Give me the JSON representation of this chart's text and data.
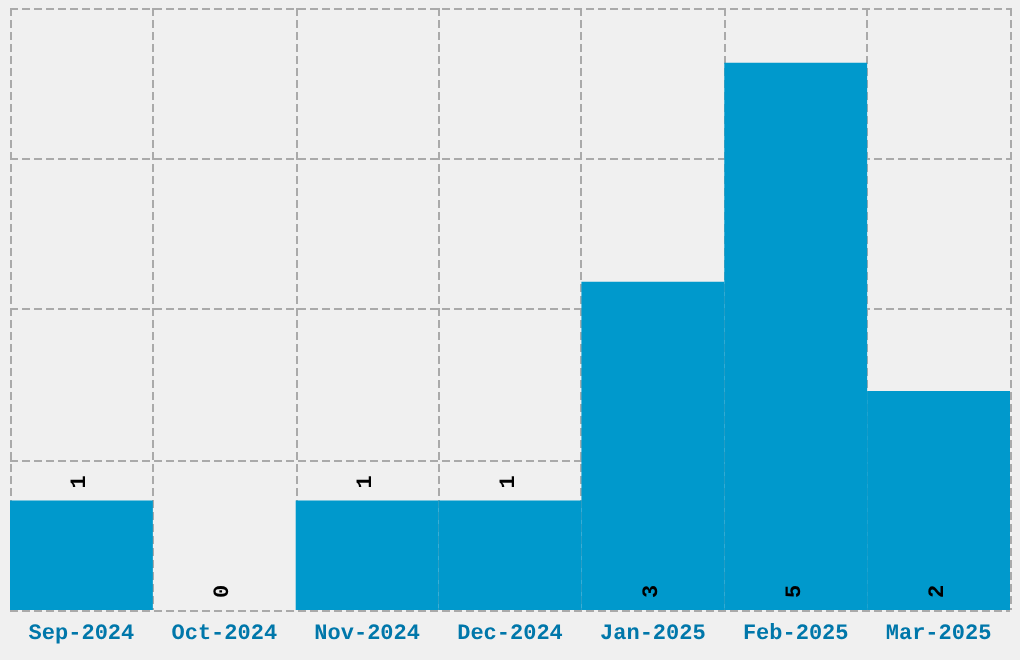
{
  "chart_data": {
    "type": "bar",
    "categories": [
      "Sep-2024",
      "Oct-2024",
      "Nov-2024",
      "Dec-2024",
      "Jan-2025",
      "Feb-2025",
      "Mar-2025"
    ],
    "values": [
      1,
      0,
      1,
      1,
      3,
      5,
      2
    ],
    "color": "#0099cc",
    "ylim": [
      0,
      5.5
    ],
    "yticks": [
      {
        "value": 0,
        "label": null
      },
      {
        "value": 1.375,
        "label": null
      },
      {
        "value": 2.75,
        "label": null
      },
      {
        "value": 4.125,
        "label": null
      },
      {
        "value": 5.5,
        "label": null
      }
    ],
    "tick_labels": "x",
    "grid": true,
    "data_labels": true
  }
}
